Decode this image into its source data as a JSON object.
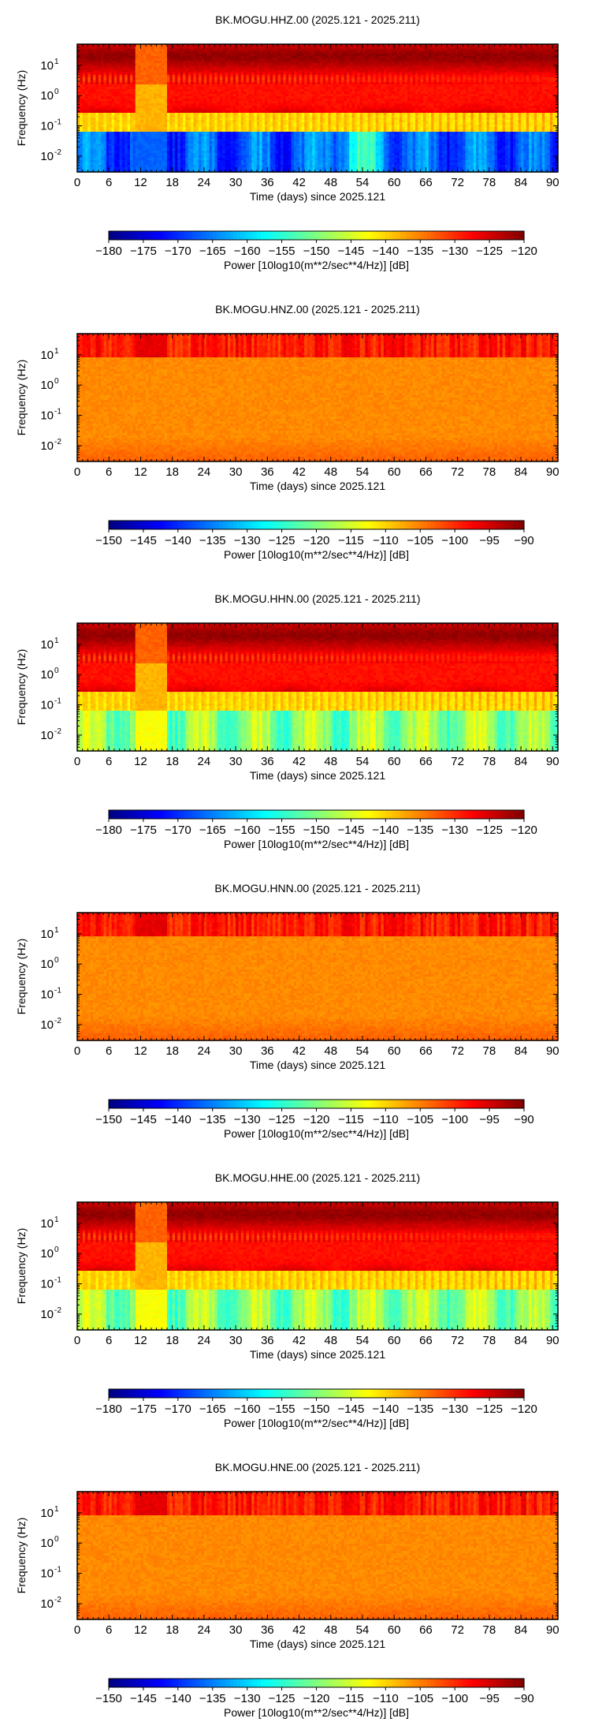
{
  "chart_data": [
    {
      "type": "heatmap",
      "title": "BK.MOGU.HHZ.00 (2025.121 - 2025.211)",
      "xlabel": "Time (days) since 2025.121",
      "ylabel": "Frequency (Hz)",
      "xlim": [
        0,
        91
      ],
      "ylim": [
        0.003,
        50
      ],
      "yscale": "log",
      "x_ticks": [
        0,
        6,
        12,
        18,
        24,
        30,
        36,
        42,
        48,
        54,
        60,
        66,
        72,
        78,
        84,
        90
      ],
      "y_ticks": [
        {
          "value": 0.01,
          "base": "10",
          "exp": "-2"
        },
        {
          "value": 0.1,
          "base": "10",
          "exp": "-1"
        },
        {
          "value": 1,
          "base": "10",
          "exp": "0"
        },
        {
          "value": 10,
          "base": "10",
          "exp": "1"
        }
      ],
      "colorbar": {
        "label": "Power [10log10(m**2/sec**4/Hz)] [dB]",
        "range": [
          -180,
          -120
        ],
        "ticks": [
          -180,
          -175,
          -170,
          -165,
          -160,
          -155,
          -150,
          -145,
          -140,
          -135,
          -130,
          -125,
          -120
        ],
        "colormap": "jet"
      },
      "pattern": "broadband"
    },
    {
      "type": "heatmap",
      "title": "BK.MOGU.HNZ.00 (2025.121 - 2025.211)",
      "xlabel": "Time (days) since 2025.121",
      "ylabel": "Frequency (Hz)",
      "xlim": [
        0,
        91
      ],
      "ylim": [
        0.003,
        50
      ],
      "yscale": "log",
      "x_ticks": [
        0,
        6,
        12,
        18,
        24,
        30,
        36,
        42,
        48,
        54,
        60,
        66,
        72,
        78,
        84,
        90
      ],
      "y_ticks": [
        {
          "value": 0.01,
          "base": "10",
          "exp": "-2"
        },
        {
          "value": 0.1,
          "base": "10",
          "exp": "-1"
        },
        {
          "value": 1,
          "base": "10",
          "exp": "0"
        },
        {
          "value": 10,
          "base": "10",
          "exp": "1"
        }
      ],
      "colorbar": {
        "label": "Power [10log10(m**2/sec**4/Hz)] [dB]",
        "range": [
          -150,
          -90
        ],
        "ticks": [
          -150,
          -145,
          -140,
          -135,
          -130,
          -125,
          -120,
          -115,
          -110,
          -105,
          -100,
          -95,
          -90
        ],
        "colormap": "jet"
      },
      "pattern": "strong-motion"
    },
    {
      "type": "heatmap",
      "title": "BK.MOGU.HHN.00 (2025.121 - 2025.211)",
      "xlabel": "Time (days) since 2025.121",
      "ylabel": "Frequency (Hz)",
      "xlim": [
        0,
        91
      ],
      "ylim": [
        0.003,
        50
      ],
      "yscale": "log",
      "x_ticks": [
        0,
        6,
        12,
        18,
        24,
        30,
        36,
        42,
        48,
        54,
        60,
        66,
        72,
        78,
        84,
        90
      ],
      "y_ticks": [
        {
          "value": 0.01,
          "base": "10",
          "exp": "-2"
        },
        {
          "value": 0.1,
          "base": "10",
          "exp": "-1"
        },
        {
          "value": 1,
          "base": "10",
          "exp": "0"
        },
        {
          "value": 10,
          "base": "10",
          "exp": "1"
        }
      ],
      "colorbar": {
        "label": "Power [10log10(m**2/sec**4/Hz)] [dB]",
        "range": [
          -180,
          -120
        ],
        "ticks": [
          -180,
          -175,
          -170,
          -165,
          -160,
          -155,
          -150,
          -145,
          -140,
          -135,
          -130,
          -125,
          -120
        ],
        "colormap": "jet"
      },
      "pattern": "broadband-horizontal"
    },
    {
      "type": "heatmap",
      "title": "BK.MOGU.HNN.00 (2025.121 - 2025.211)",
      "xlabel": "Time (days) since 2025.121",
      "ylabel": "Frequency (Hz)",
      "xlim": [
        0,
        91
      ],
      "ylim": [
        0.003,
        50
      ],
      "yscale": "log",
      "x_ticks": [
        0,
        6,
        12,
        18,
        24,
        30,
        36,
        42,
        48,
        54,
        60,
        66,
        72,
        78,
        84,
        90
      ],
      "y_ticks": [
        {
          "value": 0.01,
          "base": "10",
          "exp": "-2"
        },
        {
          "value": 0.1,
          "base": "10",
          "exp": "-1"
        },
        {
          "value": 1,
          "base": "10",
          "exp": "0"
        },
        {
          "value": 10,
          "base": "10",
          "exp": "1"
        }
      ],
      "colorbar": {
        "label": "Power [10log10(m**2/sec**4/Hz)] [dB]",
        "range": [
          -150,
          -90
        ],
        "ticks": [
          -150,
          -145,
          -140,
          -135,
          -130,
          -125,
          -120,
          -115,
          -110,
          -105,
          -100,
          -95,
          -90
        ],
        "colormap": "jet"
      },
      "pattern": "strong-motion"
    },
    {
      "type": "heatmap",
      "title": "BK.MOGU.HHE.00 (2025.121 - 2025.211)",
      "xlabel": "Time (days) since 2025.121",
      "ylabel": "Frequency (Hz)",
      "xlim": [
        0,
        91
      ],
      "ylim": [
        0.003,
        50
      ],
      "yscale": "log",
      "x_ticks": [
        0,
        6,
        12,
        18,
        24,
        30,
        36,
        42,
        48,
        54,
        60,
        66,
        72,
        78,
        84,
        90
      ],
      "y_ticks": [
        {
          "value": 0.01,
          "base": "10",
          "exp": "-2"
        },
        {
          "value": 0.1,
          "base": "10",
          "exp": "-1"
        },
        {
          "value": 1,
          "base": "10",
          "exp": "0"
        },
        {
          "value": 10,
          "base": "10",
          "exp": "1"
        }
      ],
      "colorbar": {
        "label": "Power [10log10(m**2/sec**4/Hz)] [dB]",
        "range": [
          -180,
          -120
        ],
        "ticks": [
          -180,
          -175,
          -170,
          -165,
          -160,
          -155,
          -150,
          -145,
          -140,
          -135,
          -130,
          -125,
          -120
        ],
        "colormap": "jet"
      },
      "pattern": "broadband-horizontal"
    },
    {
      "type": "heatmap",
      "title": "BK.MOGU.HNE.00 (2025.121 - 2025.211)",
      "xlabel": "Time (days) since 2025.121",
      "ylabel": "Frequency (Hz)",
      "xlim": [
        0,
        91
      ],
      "ylim": [
        0.003,
        50
      ],
      "yscale": "log",
      "x_ticks": [
        0,
        6,
        12,
        18,
        24,
        30,
        36,
        42,
        48,
        54,
        60,
        66,
        72,
        78,
        84,
        90
      ],
      "y_ticks": [
        {
          "value": 0.01,
          "base": "10",
          "exp": "-2"
        },
        {
          "value": 0.1,
          "base": "10",
          "exp": "-1"
        },
        {
          "value": 1,
          "base": "10",
          "exp": "0"
        },
        {
          "value": 10,
          "base": "10",
          "exp": "1"
        }
      ],
      "colorbar": {
        "label": "Power [10log10(m**2/sec**4/Hz)] [dB]",
        "range": [
          -150,
          -90
        ],
        "ticks": [
          -150,
          -145,
          -140,
          -135,
          -130,
          -125,
          -120,
          -115,
          -110,
          -105,
          -100,
          -95,
          -90
        ],
        "colormap": "jet"
      },
      "pattern": "strong-motion"
    }
  ]
}
